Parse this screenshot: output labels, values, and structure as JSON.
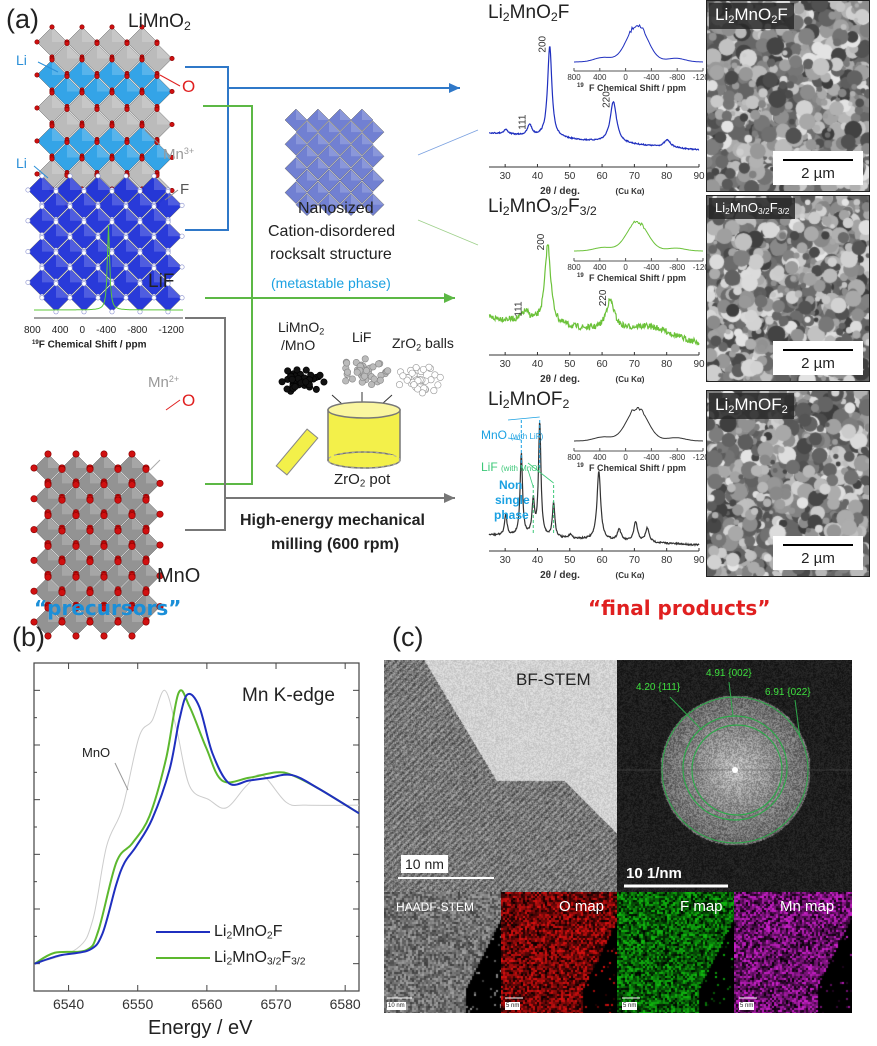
{
  "panel_a": {
    "label": "(a)",
    "precursors": {
      "limno2": "LiMnO2",
      "li_label_1": "Li",
      "o_label_1": "O",
      "mn3_label": "Mn",
      "mn3_charge": "3+",
      "li_label_2": "Li",
      "f_label": "F",
      "lif": "LiF",
      "mn2_label": "Mn",
      "mn2_charge": "2+",
      "o_label_2": "O",
      "mno": "MnO",
      "lif_nmr": {
        "ticks": [
          "800",
          "400",
          "0",
          "-400",
          "-800",
          "-1200"
        ],
        "xlabel_sup": "19",
        "xlabel": "F Chemical Shift  /  ppm"
      }
    },
    "precursors_caption": "“precursors”",
    "nano": {
      "line1": "Nanosized",
      "line2": "Cation-disordered",
      "line3": "rocksalt structure",
      "metastable": "(metastable phase)"
    },
    "milling": {
      "precursor": "LiMnO2",
      "precursor2": "/MnO",
      "lif": "LiF",
      "balls": "ZrO2 balls",
      "pot": "ZrO2 pot",
      "line1": "High-energy mechanical",
      "line2": "milling (600 rpm)"
    },
    "xrd_axis": {
      "ticks": [
        "30",
        "40",
        "50",
        "60",
        "70",
        "80",
        "90"
      ],
      "xlabel": "2θ / deg.",
      "xlabel_unit": "(Cu Kα)",
      "xlim": [
        25,
        90
      ]
    },
    "nmr_axis": {
      "ticks": [
        "800",
        "400",
        "0",
        "-400",
        "-800",
        "-1200"
      ],
      "xlabel_sup": "19",
      "xlabel": "F Chemical Shift  /  ppm",
      "xlim": [
        800,
        -1200
      ]
    },
    "products": [
      {
        "name": "Li2MnO2F",
        "color": "#1f2fbf",
        "peaks": [
          {
            "two_theta": 30.2,
            "rel": 0.05,
            "label": ""
          },
          {
            "two_theta": 37.6,
            "rel": 0.12,
            "label": "111"
          },
          {
            "two_theta": 43.8,
            "rel": 1.0,
            "label": "200"
          },
          {
            "two_theta": 63.5,
            "rel": 0.45,
            "label": "220"
          },
          {
            "two_theta": 80.2,
            "rel": 0.08,
            "label": ""
          }
        ],
        "sem_label": "Li2MnO2F",
        "sem_scale": "2 µm"
      },
      {
        "name": "Li2MnO3/2F3/2",
        "color": "#6cc23a",
        "peaks": [
          {
            "two_theta": 36.3,
            "rel": 0.12,
            "label": "111"
          },
          {
            "two_theta": 43.2,
            "rel": 1.0,
            "label": "200"
          },
          {
            "two_theta": 62.5,
            "rel": 0.38,
            "label": "220"
          }
        ],
        "sem_label": "Li2MnO3/2F3/2",
        "sem_scale": "2 µm"
      },
      {
        "name": "Li2MnOF2",
        "color": "#333333",
        "peaks": [
          {
            "two_theta": 30.2,
            "rel": 0.18,
            "label": ""
          },
          {
            "two_theta": 35.0,
            "rel": 0.72,
            "label": ""
          },
          {
            "two_theta": 38.7,
            "rel": 0.3,
            "label": ""
          },
          {
            "two_theta": 40.7,
            "rel": 1.0,
            "label": ""
          },
          {
            "two_theta": 45.0,
            "rel": 0.3,
            "label": ""
          },
          {
            "two_theta": 50.2,
            "rel": 0.04,
            "label": ""
          },
          {
            "two_theta": 59.0,
            "rel": 0.6,
            "label": ""
          },
          {
            "two_theta": 65.3,
            "rel": 0.1,
            "label": ""
          },
          {
            "two_theta": 70.4,
            "rel": 0.17,
            "label": ""
          },
          {
            "two_theta": 74.0,
            "rel": 0.12,
            "label": ""
          }
        ],
        "annotations": {
          "mno": "MnO",
          "mno_note": "(with LiF)",
          "lif": "LiF",
          "lif_note": "(with MnO)",
          "non1": "Non",
          "non2": "single",
          "non3": "phase",
          "mno_color": "#1ba1e2",
          "lif_color": "#3cc878"
        },
        "sem_label": "Li2MnOF2",
        "sem_scale": "2 µm"
      }
    ],
    "final_caption": "“final products”",
    "colors": {
      "blue_path": "#2f78c8",
      "green_path": "#5cb845",
      "gray_path": "#777777",
      "precursors": "#1b8fd8",
      "final": "#e02020"
    }
  },
  "panel_b": {
    "label": "(b)",
    "chart_data": {
      "type": "line",
      "title": "Mn K-edge",
      "xlabel": "Energy / eV",
      "ylabel": "",
      "xlim": [
        6535,
        6582
      ],
      "ylim": [
        -0.1,
        1.1
      ],
      "xticks": [
        "6540",
        "6550",
        "6560",
        "6570",
        "6580"
      ],
      "grid": false,
      "legend_position": "bottom-right",
      "series": [
        {
          "name": "Li2MnO2F",
          "color": "#1f2fbf",
          "x": [
            6535.1,
            6538.7,
            6543.0,
            6544.9,
            6546.9,
            6548.1,
            6549.8,
            6552.1,
            6554.6,
            6556.0,
            6557.2,
            6558.9,
            6560.8,
            6563.2,
            6566.1,
            6569.0,
            6572.3,
            6576.2,
            6582.0
          ],
          "y": [
            0.0,
            0.03,
            0.05,
            0.11,
            0.29,
            0.37,
            0.43,
            0.53,
            0.71,
            0.89,
            0.985,
            0.94,
            0.77,
            0.66,
            0.67,
            0.68,
            0.69,
            0.64,
            0.55
          ]
        },
        {
          "name": "Li2MnO3/2F3/2",
          "color": "#5cb82e",
          "x": [
            6535.1,
            6538.0,
            6542.6,
            6544.3,
            6546.9,
            6549.2,
            6551.7,
            6554.1,
            6555.9,
            6557.5,
            6559.9,
            6562.2,
            6566.1,
            6570.0,
            6572.3,
            6576.2,
            6582.0
          ],
          "y": [
            0.0,
            0.04,
            0.05,
            0.12,
            0.37,
            0.44,
            0.54,
            0.75,
            0.99,
            0.94,
            0.79,
            0.67,
            0.68,
            0.7,
            0.69,
            0.64,
            0.55
          ]
        },
        {
          "name": "MnO",
          "color": "#cccccc",
          "x": [
            6535.1,
            6541.2,
            6543.5,
            6545.5,
            6547.8,
            6550.2,
            6552.1,
            6553.9,
            6555.6,
            6557.5,
            6560.3,
            6562.8,
            6565.7,
            6568.0,
            6571.5,
            6574.3,
            6582.0
          ],
          "y": [
            0.0,
            0.055,
            0.16,
            0.43,
            0.57,
            0.83,
            0.89,
            1.0,
            0.86,
            0.65,
            0.6,
            0.57,
            0.65,
            0.69,
            0.59,
            0.58,
            0.58
          ]
        }
      ]
    },
    "legend": [
      "Li2MnO2F",
      "Li2MnO3/2F3/2"
    ],
    "mno_label": "MnO"
  },
  "panel_c": {
    "label": "(c)",
    "bf_label": "BF-STEM",
    "bf_scale": "10 nm",
    "fft_rings": [
      "4.20 {111}",
      "4.91 {002}",
      "6.91 {022}"
    ],
    "fft_scale": "10 1/nm",
    "maps": [
      {
        "label": "HAADF-STEM",
        "scale": "10 nm",
        "color": "#cccccc"
      },
      {
        "label": "O map",
        "scale": "5 nm",
        "color": "#e01010"
      },
      {
        "label": "F map",
        "scale": "5 nm",
        "color": "#10c010"
      },
      {
        "label": "Mn map",
        "scale": "5 nm",
        "color": "#d020d0"
      }
    ]
  }
}
